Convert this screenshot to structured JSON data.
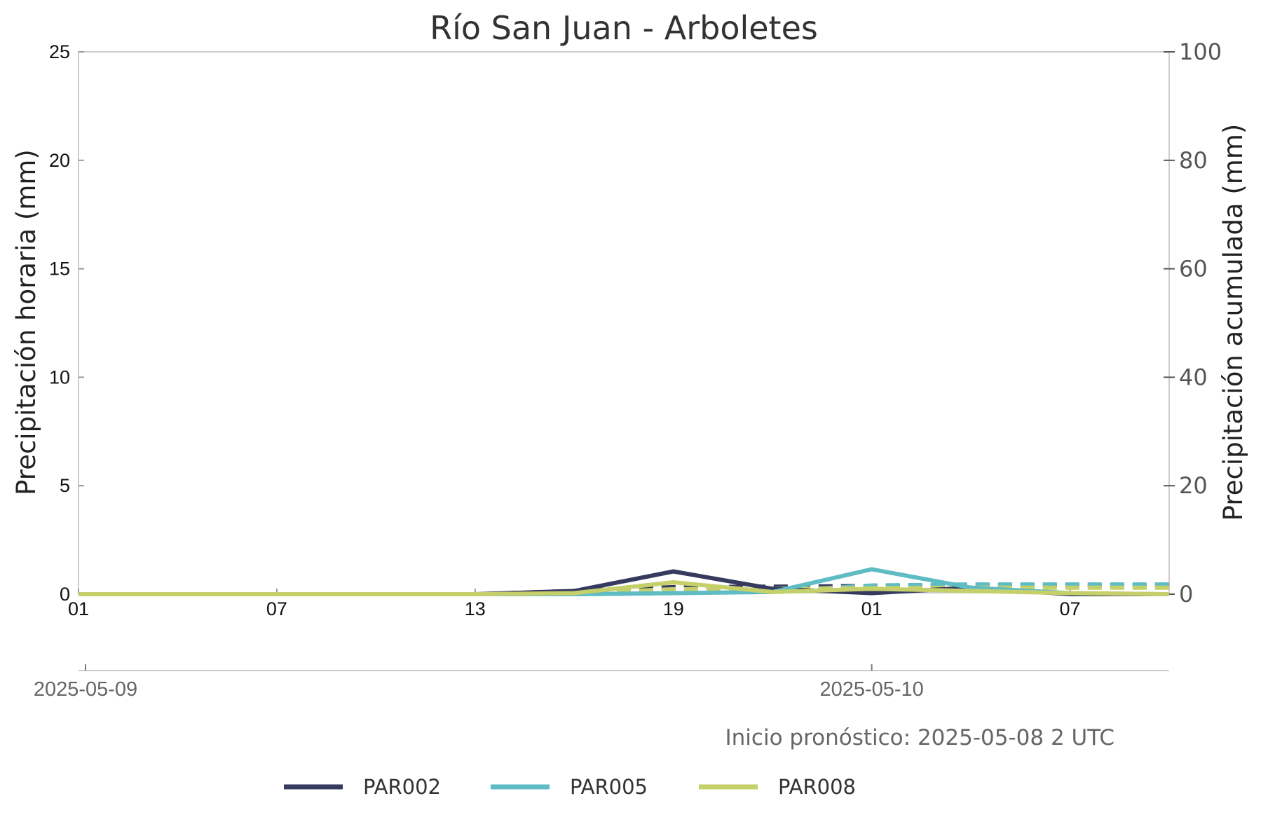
{
  "chart_data": {
    "type": "line",
    "title": "Río San Juan - Arboletes",
    "ylabel_left": "Precipitación horaria (mm)",
    "ylabel_right": "Precipitación acumulada (mm)",
    "ylim_left": [
      0,
      25
    ],
    "ylim_right": [
      0,
      100
    ],
    "yticks_left": [
      "0",
      "5",
      "10",
      "15",
      "20",
      "25"
    ],
    "yticks_right": [
      "0",
      "20",
      "40",
      "60",
      "80",
      "100"
    ],
    "x_hours": [
      0,
      33
    ],
    "xticks": [
      {
        "hour": 0,
        "label": "01"
      },
      {
        "hour": 6,
        "label": "07"
      },
      {
        "hour": 12,
        "label": "13"
      },
      {
        "hour": 18,
        "label": "19"
      },
      {
        "hour": 24,
        "label": "01"
      },
      {
        "hour": 30,
        "label": "07"
      }
    ],
    "date_ticks": [
      "2025-05-09",
      "2025-05-10"
    ],
    "note": "Inicio pronóstico: 2025-05-08 2 UTC",
    "grid": false,
    "legend_position": "bottom",
    "series": [
      {
        "name": "PAR002",
        "color": "#363a5e",
        "hourly_x": [
          0,
          3,
          6,
          9,
          12,
          15,
          18,
          21,
          24,
          27,
          30,
          33
        ],
        "hourly": [
          0,
          0,
          0,
          0,
          0,
          0.15,
          1.05,
          0.25,
          0.05,
          0.3,
          0,
          0
        ],
        "cumulative_x": [
          0,
          3,
          6,
          9,
          12,
          15,
          18,
          21,
          24,
          27,
          30,
          33
        ],
        "cumulative": [
          0,
          0,
          0,
          0,
          0,
          0.6,
          1.3,
          1.4,
          1.5,
          1.6,
          1.6,
          1.6
        ]
      },
      {
        "name": "PAR005",
        "color": "#5fbcc4",
        "hourly_x": [
          0,
          3,
          6,
          9,
          12,
          15,
          18,
          21,
          24,
          27,
          30,
          33
        ],
        "hourly": [
          0,
          0,
          0,
          0,
          0,
          0,
          0.05,
          0.1,
          1.15,
          0.3,
          0.05,
          0
        ],
        "cumulative_x": [
          0,
          3,
          6,
          9,
          12,
          15,
          18,
          21,
          24,
          27,
          30,
          33
        ],
        "cumulative": [
          0,
          0,
          0,
          0,
          0,
          0,
          0.2,
          0.5,
          1.6,
          1.8,
          1.8,
          1.8
        ]
      },
      {
        "name": "PAR008",
        "color": "#c6d06a",
        "hourly_x": [
          0,
          3,
          6,
          9,
          12,
          15,
          18,
          21,
          24,
          27,
          30,
          33
        ],
        "hourly": [
          0,
          0,
          0,
          0,
          0,
          0.05,
          0.55,
          0.1,
          0.25,
          0.15,
          0.05,
          0
        ],
        "cumulative_x": [
          0,
          3,
          6,
          9,
          12,
          15,
          18,
          21,
          24,
          27,
          30,
          33
        ],
        "cumulative": [
          0,
          0,
          0,
          0,
          0,
          0.2,
          0.9,
          1.0,
          1.1,
          1.2,
          1.2,
          1.2
        ]
      }
    ]
  }
}
